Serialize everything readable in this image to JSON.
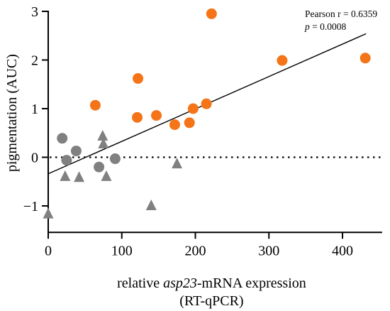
{
  "chart_data": {
    "type": "scatter",
    "title": "",
    "xlabel": {
      "line1_prefix": "relative ",
      "line1_italic": "asp23",
      "line1_suffix": "-mRNA expression",
      "line2": "(RT-qPCR)"
    },
    "ylabel": "pigmentation (AUC)",
    "xlim": [
      0,
      450
    ],
    "ylim": [
      -1.5,
      3
    ],
    "xticks": [
      0,
      100,
      200,
      300,
      400
    ],
    "yticks": [
      -1,
      0,
      1,
      2,
      3
    ],
    "xtick_labels": [
      "0",
      "100",
      "200",
      "300",
      "400"
    ],
    "ytick_labels": [
      "−1",
      "0",
      "1",
      "2",
      "3"
    ],
    "grid": false,
    "reference_line": {
      "y": 0,
      "style": "dotted"
    },
    "regression": {
      "x": [
        0,
        432
      ],
      "y": [
        -0.34,
        2.54
      ]
    },
    "annotation": {
      "line1": "Pearson r = 0.6359",
      "line2_italic": "p",
      "line2_rest": " = 0.0008"
    },
    "series": [
      {
        "marker": "circle",
        "color": "#f47417",
        "points": [
          {
            "x": 64,
            "y": 1.07
          },
          {
            "x": 122,
            "y": 1.62
          },
          {
            "x": 121,
            "y": 0.82
          },
          {
            "x": 147,
            "y": 0.86
          },
          {
            "x": 172,
            "y": 0.67
          },
          {
            "x": 192,
            "y": 0.71
          },
          {
            "x": 197,
            "y": 1.0
          },
          {
            "x": 215,
            "y": 1.1
          },
          {
            "x": 222,
            "y": 2.95
          },
          {
            "x": 318,
            "y": 1.99
          },
          {
            "x": 431,
            "y": 2.04
          }
        ]
      },
      {
        "marker": "circle",
        "color": "#808080",
        "points": [
          {
            "x": 19,
            "y": 0.39
          },
          {
            "x": 25,
            "y": -0.06
          },
          {
            "x": 38,
            "y": 0.13
          },
          {
            "x": 69,
            "y": -0.2
          },
          {
            "x": 91,
            "y": -0.03
          }
        ]
      },
      {
        "marker": "triangle",
        "color": "#808080",
        "points": [
          {
            "x": 0,
            "y": -1.17
          },
          {
            "x": 23,
            "y": -0.4
          },
          {
            "x": 42,
            "y": -0.42
          },
          {
            "x": 74,
            "y": 0.43
          },
          {
            "x": 75,
            "y": 0.27
          },
          {
            "x": 79,
            "y": -0.4
          },
          {
            "x": 140,
            "y": -1.0
          },
          {
            "x": 175,
            "y": -0.14
          }
        ]
      }
    ]
  }
}
